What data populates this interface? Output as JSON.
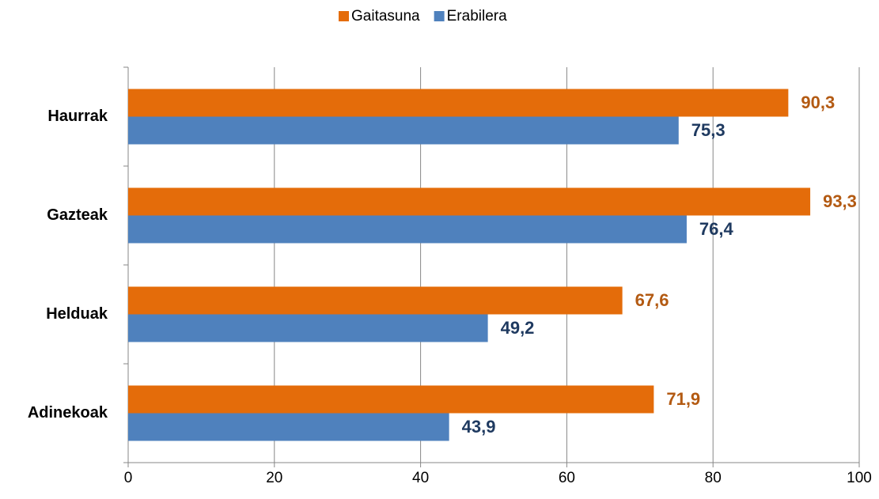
{
  "chart_data": {
    "type": "barh",
    "categories": [
      "Haurrak",
      "Gazteak",
      "Helduak",
      "Adinekoak"
    ],
    "series": [
      {
        "name": "Gaitasuna",
        "color": "#e46c0a",
        "label_color": "#b35a12",
        "values": [
          90.3,
          93.3,
          67.6,
          71.9
        ],
        "value_labels": [
          "90,3",
          "93,3",
          "67,6",
          "71,9"
        ]
      },
      {
        "name": "Erabilera",
        "color": "#4f81bd",
        "label_color": "#1f3a60",
        "values": [
          75.3,
          76.4,
          49.2,
          43.9
        ],
        "value_labels": [
          "75,3",
          "76,4",
          "49,2",
          "43,9"
        ]
      }
    ],
    "xlim": [
      0,
      100
    ],
    "xticks": [
      0,
      20,
      40,
      60,
      80,
      100
    ],
    "grid": true,
    "legend": "top"
  }
}
